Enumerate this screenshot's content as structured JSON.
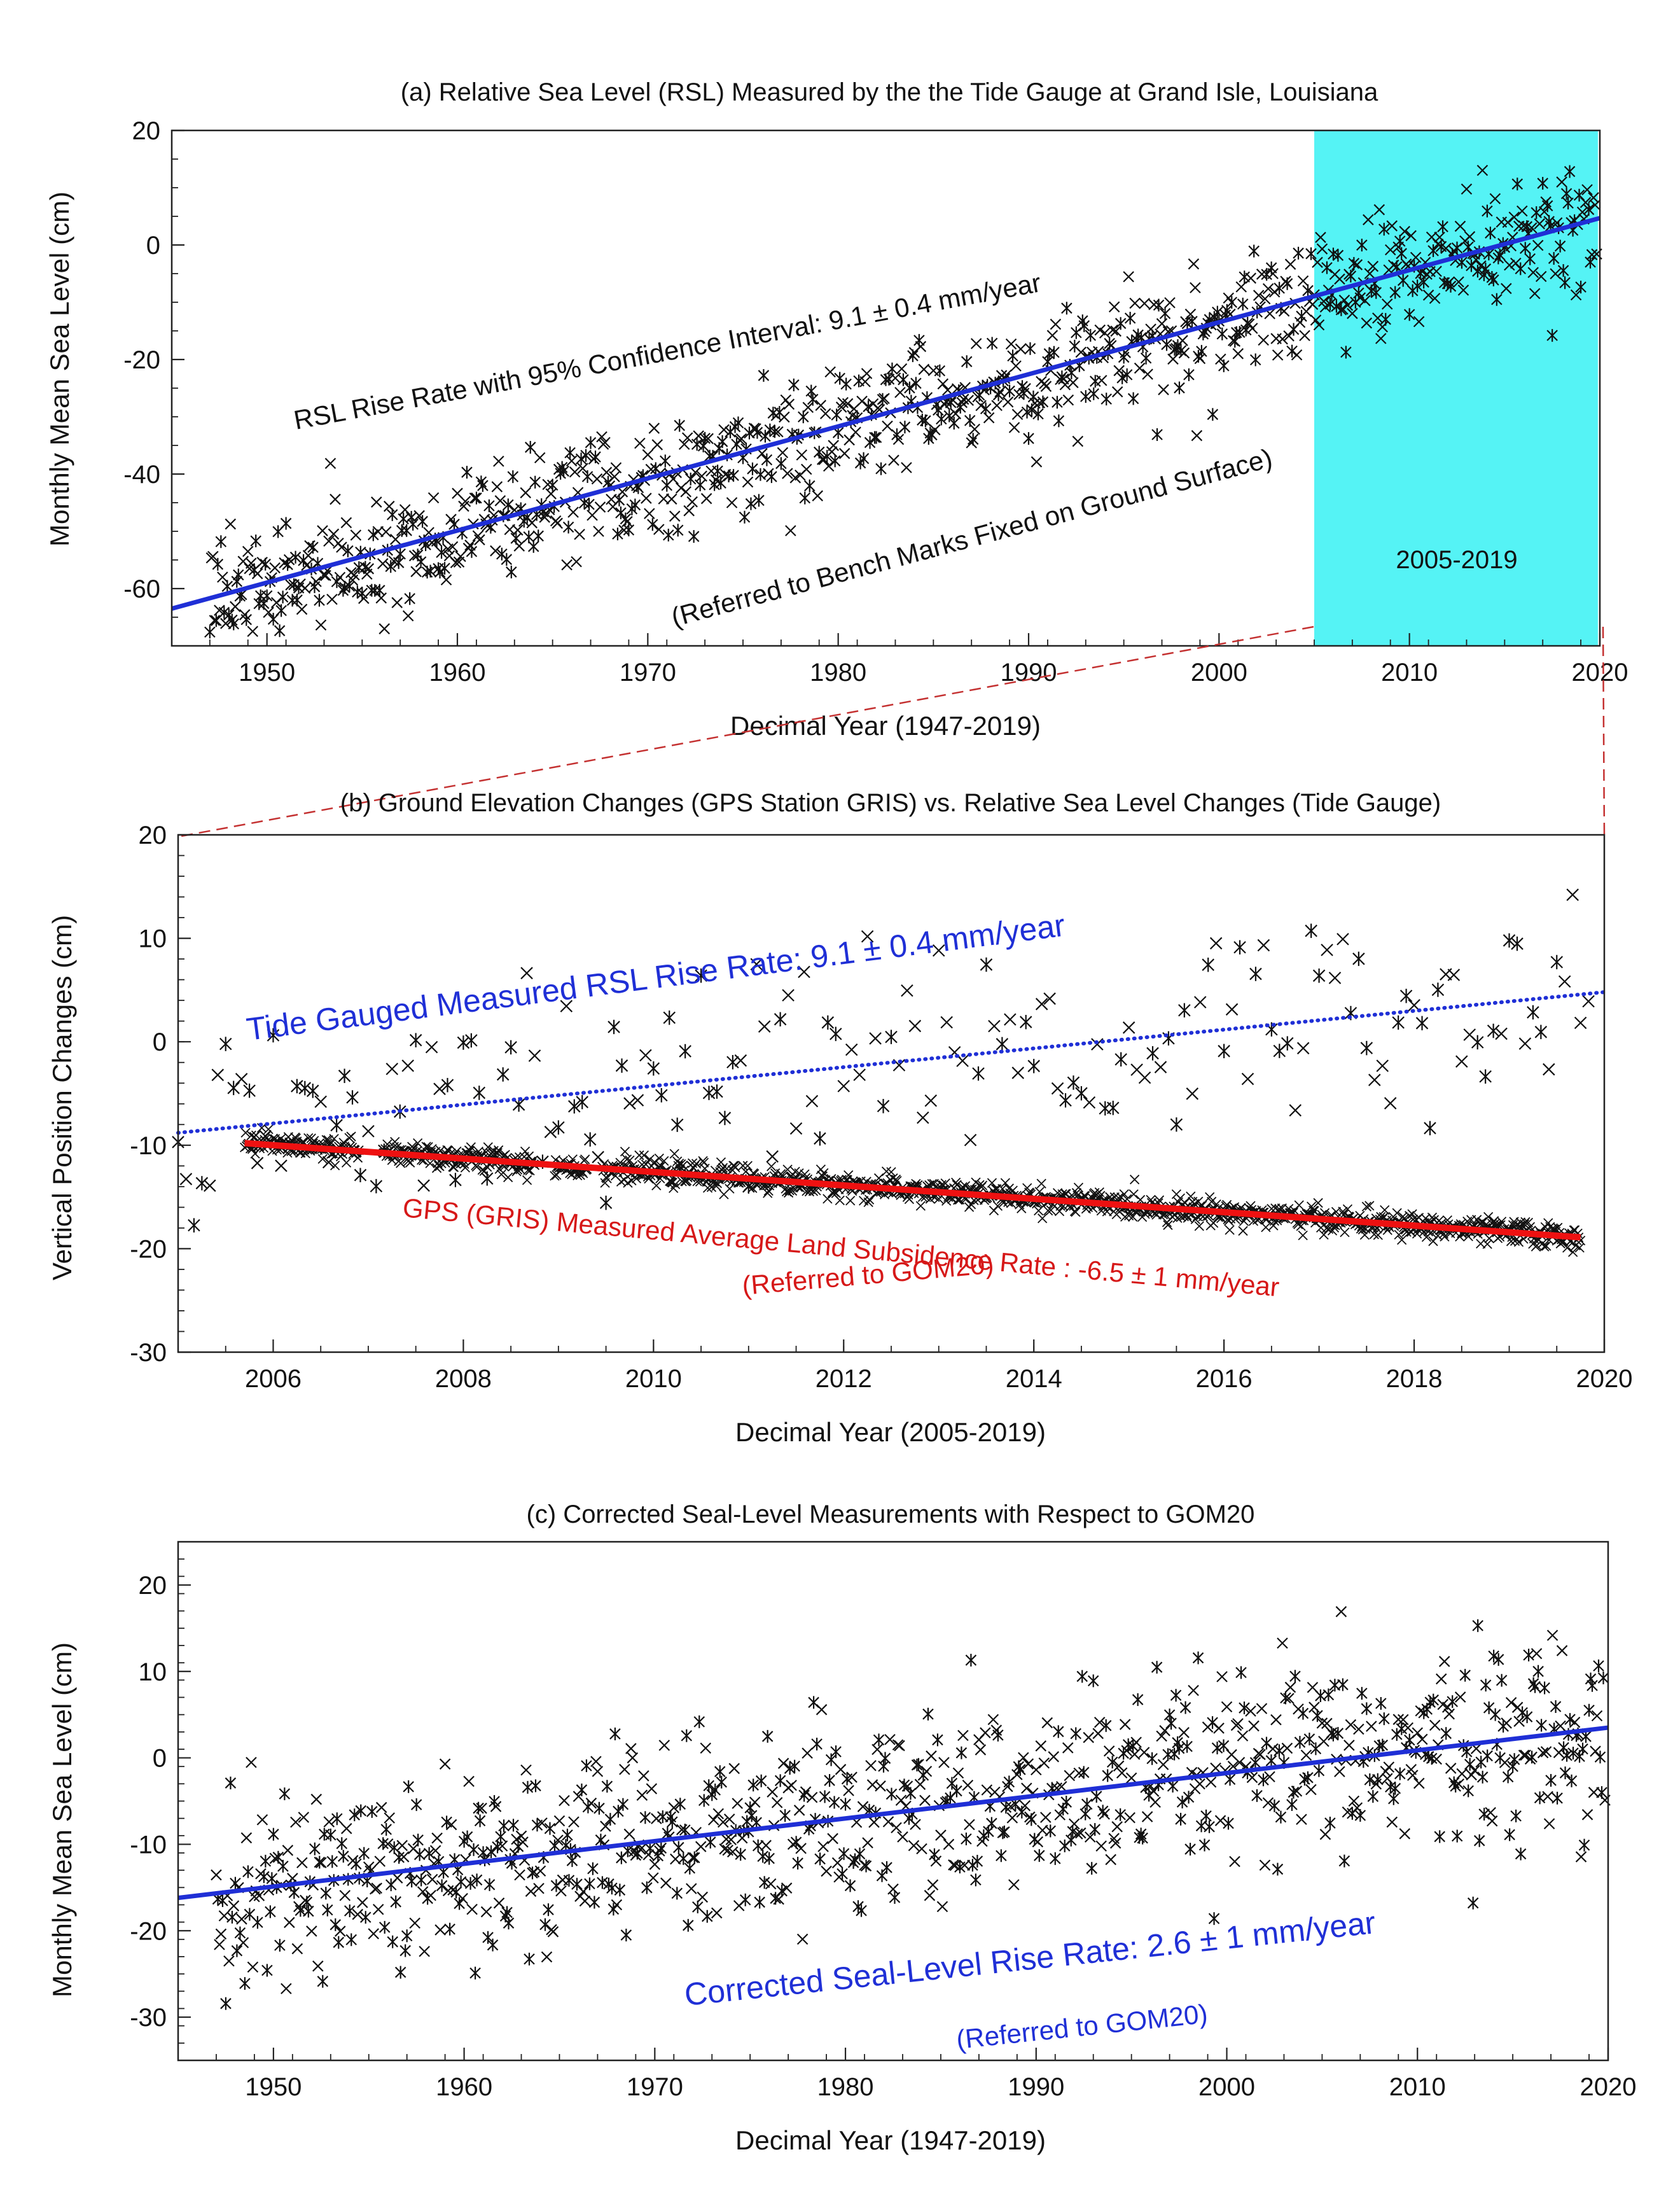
{
  "figure": {
    "colors": {
      "data_marker": "#111111",
      "trend_blue": "#1f2fd6",
      "trend_red": "#ee1111",
      "highlight": "#55f3f5",
      "annot_red": "#d61818",
      "annot_blue": "#1f2fd6",
      "connector": "#c43131"
    }
  },
  "chart_data": [
    {
      "id": "a",
      "type": "scatter",
      "title": "(a) Relative Sea Level (RSL) Measured by the the Tide Gauge at Grand Isle, Louisiana",
      "xlabel": "Decimal Year (1947-2019)",
      "ylabel": "Monthly Mean Sea Level (cm)",
      "xlim": [
        1945,
        2020
      ],
      "ylim": [
        -70,
        20
      ],
      "xticks": [
        1950,
        1960,
        1970,
        1980,
        1990,
        2000,
        2010,
        2020
      ],
      "yticks": [
        20,
        0,
        -20,
        -40,
        -60
      ],
      "series": [
        {
          "name": "Monthly mean sea level (tide gauge)",
          "kind": "scatter",
          "marker": "asterisk",
          "x_start": 1947,
          "x_end": 2019.9,
          "trend_slope_cm_per_yr": 0.91,
          "trend_at_1945": -63.5,
          "noise_sd_cm": 5.2
        }
      ],
      "trend_line": {
        "x": [
          1945,
          2020
        ],
        "y": [
          -63.5,
          4.7
        ],
        "color": "#1f2fd6"
      },
      "highlight": {
        "x_range": [
          2005,
          2019.9
        ],
        "label": "2005-2019"
      },
      "annotations": [
        {
          "text": "RSL Rise Rate with 95% Confidence Interval: 9.1 ± 0.4 mm/year"
        },
        {
          "text": "(Referred to Bench Marks Fixed on Ground Surface)"
        }
      ]
    },
    {
      "id": "b",
      "type": "scatter",
      "title": "(b) Ground Elevation Changes (GPS Station GRIS) vs. Relative Sea Level Changes (Tide Gauge)",
      "xlabel": "Decimal Year (2005-2019)",
      "ylabel": "Vertical Position Changes (cm)",
      "xlim": [
        2005,
        2020
      ],
      "ylim": [
        -30,
        20
      ],
      "xticks": [
        2006,
        2008,
        2010,
        2012,
        2014,
        2016,
        2018,
        2020
      ],
      "yticks": [
        20,
        10,
        0,
        -10,
        -20,
        -30
      ],
      "series": [
        {
          "name": "Tide gauge monthly RSL (2005-2019)",
          "kind": "scatter",
          "marker": "asterisk",
          "x_start": 2005,
          "x_end": 2019.9,
          "trend_slope_cm_per_yr": 0.91,
          "trend_at_2005": -8.8,
          "noise_sd_cm": 5.0
        },
        {
          "name": "GPS GRIS daily vertical position",
          "kind": "dense",
          "marker": "x",
          "x_start": 2005.7,
          "x_end": 2019.75,
          "trend_slope_cm_per_yr": -0.65,
          "trend_at_2005_7": -9.8,
          "noise_sd_cm": 0.6,
          "gaps": [
            [
              2006.9,
              2007.15
            ],
            [
              2008.75,
              2008.95
            ],
            [
              2009.3,
              2009.45
            ]
          ]
        }
      ],
      "trend_lines": [
        {
          "name": "Tide gauge RSL trend",
          "x": [
            2005,
            2020
          ],
          "y": [
            -8.8,
            4.8
          ],
          "style": "dotted",
          "color": "#1f2fd6"
        },
        {
          "name": "GPS subsidence trend",
          "x": [
            2005.7,
            2019.75
          ],
          "y": [
            -9.8,
            -18.9
          ],
          "style": "solid",
          "color": "#ee1111"
        }
      ],
      "annotations": [
        {
          "text": "Tide Gauged Measured RSL Rise Rate: 9.1 ± 0.4 mm/year"
        },
        {
          "text": "GPS (GRIS) Measured Average Land Subsidence Rate : -6.5 ± 1 mm/year"
        },
        {
          "text": "(Referred to GOM20)"
        }
      ]
    },
    {
      "id": "c",
      "type": "scatter",
      "title": "(c) Corrected Seal-Level Measurements with Respect to GOM20",
      "xlabel": "Decimal Year (1947-2019)",
      "ylabel": "Monthly Mean Sea Level (cm)",
      "xlim": [
        1945,
        2020
      ],
      "ylim": [
        -35,
        25
      ],
      "xticks": [
        1950,
        1960,
        1970,
        1980,
        1990,
        2000,
        2010,
        2020
      ],
      "yticks": [
        20,
        10,
        0,
        -10,
        -20,
        -30
      ],
      "series": [
        {
          "name": "Corrected monthly mean sea level",
          "kind": "scatter",
          "marker": "asterisk",
          "x_start": 1947,
          "x_end": 2019.9,
          "trend_slope_cm_per_yr": 0.26,
          "trend_at_1945": -16.2,
          "noise_sd_cm": 5.5
        }
      ],
      "trend_line": {
        "x": [
          1945,
          2020
        ],
        "y": [
          -16.2,
          3.5
        ],
        "color": "#1f2fd6"
      },
      "annotations": [
        {
          "text": "Corrected Seal-Level Rise Rate: 2.6 ± 1 mm/year"
        },
        {
          "text": "(Referred to GOM20)"
        }
      ]
    }
  ]
}
